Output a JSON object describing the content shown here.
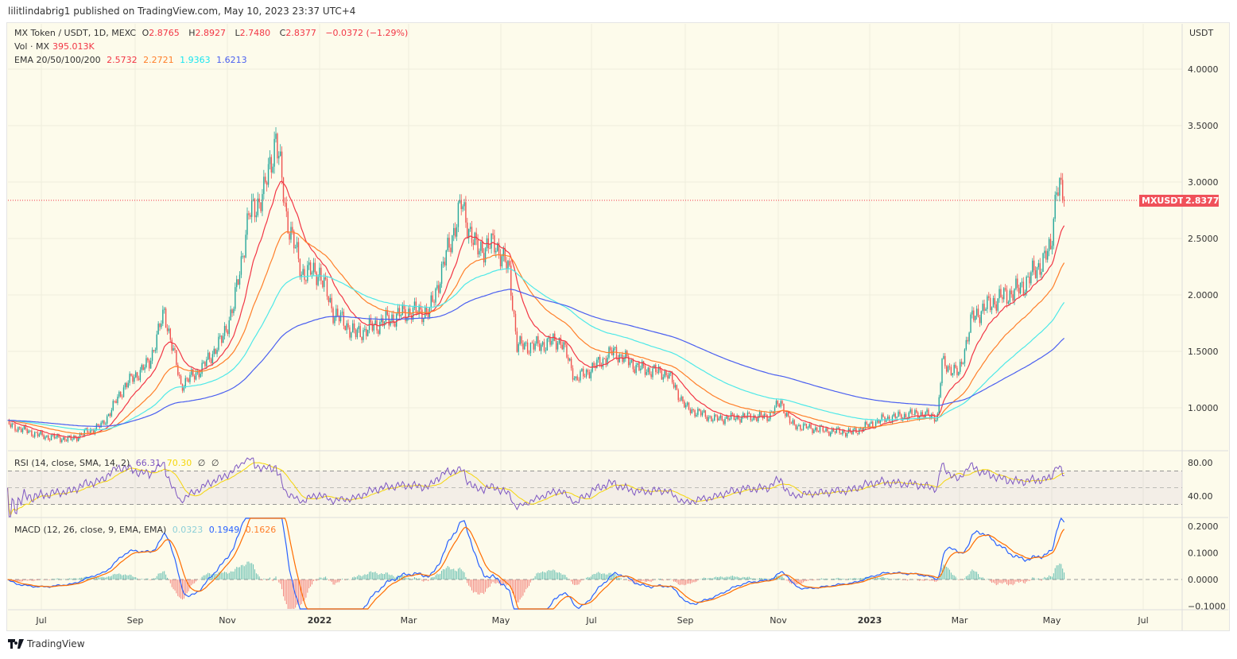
{
  "publish_line": "lilitlindabrig1 published on TradingView.com, May 10, 2023 23:37 UTC+4",
  "legend": {
    "symbol": "MX Token / USDT, 1D, MEXC",
    "o_label": "O",
    "o": "2.8765",
    "h_label": "H",
    "h": "2.8927",
    "l_label": "L",
    "l": "2.7480",
    "c_label": "C",
    "c": "2.8377",
    "change": "−0.0372 (−1.29%)",
    "vol_label": "Vol · MX",
    "vol": "395.013K",
    "ema_label": "EMA 20/50/100/200",
    "ema20": "2.5732",
    "ema50": "2.2721",
    "ema100": "1.9363",
    "ema200": "1.6213",
    "rsi_label": "RSI (14, close, SMA, 14, 2)",
    "rsi": "66.31",
    "rsi_ma": "70.30",
    "rsi_x1": "∅",
    "rsi_x2": "∅",
    "macd_label": "MACD (12, 26, close, 9, EMA, EMA)",
    "macd_hist": "0.0323",
    "macd": "0.1949",
    "macd_signal": "0.1626"
  },
  "price_axis": {
    "unit": "USDT",
    "ticks": [
      "4.0000",
      "3.5000",
      "3.0000",
      "2.5000",
      "2.0000",
      "1.5000",
      "1.0000"
    ]
  },
  "last_price_tag": {
    "symbol": "MXUSDT",
    "price": "2.8377"
  },
  "rsi_axis": {
    "ticks": [
      "80.00",
      "40.00"
    ]
  },
  "macd_axis": {
    "ticks": [
      "0.2000",
      "0.1000",
      "0.0000",
      "−0.1000"
    ]
  },
  "time_axis": {
    "ticks": [
      "Jul",
      "Sep",
      "Nov",
      "2022",
      "Mar",
      "May",
      "Jul",
      "Sep",
      "Nov",
      "2023",
      "Mar",
      "May",
      "Jul"
    ]
  },
  "brand": "TradingView",
  "colors": {
    "up": "#26a69a",
    "down": "#ef5350",
    "ema20": "#f23645",
    "ema50": "#ff7f2a",
    "ema100": "#4ee8e8",
    "ema200": "#4a5ff0",
    "rsi": "#7e57c2",
    "rsi_ma": "#f5d60a",
    "macd": "#2962ff",
    "signal": "#ff6d00"
  },
  "chart_data": {
    "type": "candlestick",
    "ylim": [
      0.62,
      4.2
    ],
    "yscale": "linear",
    "grid": true,
    "approximate_close_points": [
      [
        "2021-06-08",
        0.85
      ],
      [
        "2021-07-01",
        0.75
      ],
      [
        "2021-07-20",
        0.72
      ],
      [
        "2021-08-10",
        0.85
      ],
      [
        "2021-08-25",
        1.2
      ],
      [
        "2021-09-10",
        1.4
      ],
      [
        "2021-09-20",
        1.85
      ],
      [
        "2021-10-01",
        1.2
      ],
      [
        "2021-10-15",
        1.35
      ],
      [
        "2021-10-28",
        1.6
      ],
      [
        "2021-11-05",
        1.9
      ],
      [
        "2021-11-15",
        2.7
      ],
      [
        "2021-11-25",
        2.9
      ],
      [
        "2021-12-03",
        3.4
      ],
      [
        "2021-12-10",
        2.7
      ],
      [
        "2021-12-20",
        2.2
      ],
      [
        "2022-01-01",
        2.2
      ],
      [
        "2022-01-10",
        1.85
      ],
      [
        "2022-01-25",
        1.65
      ],
      [
        "2022-02-10",
        1.75
      ],
      [
        "2022-02-28",
        1.85
      ],
      [
        "2022-03-15",
        1.85
      ],
      [
        "2022-03-25",
        2.3
      ],
      [
        "2022-04-05",
        2.8
      ],
      [
        "2022-04-15",
        2.4
      ],
      [
        "2022-04-28",
        2.45
      ],
      [
        "2022-05-07",
        2.2
      ],
      [
        "2022-05-12",
        1.55
      ],
      [
        "2022-05-25",
        1.55
      ],
      [
        "2022-06-10",
        1.6
      ],
      [
        "2022-06-20",
        1.25
      ],
      [
        "2022-07-01",
        1.35
      ],
      [
        "2022-07-15",
        1.5
      ],
      [
        "2022-08-01",
        1.35
      ],
      [
        "2022-08-20",
        1.3
      ],
      [
        "2022-09-01",
        1.0
      ],
      [
        "2022-09-20",
        0.9
      ],
      [
        "2022-10-10",
        0.92
      ],
      [
        "2022-10-25",
        0.92
      ],
      [
        "2022-11-03",
        1.05
      ],
      [
        "2022-11-10",
        0.85
      ],
      [
        "2022-12-01",
        0.8
      ],
      [
        "2022-12-20",
        0.78
      ],
      [
        "2023-01-10",
        0.9
      ],
      [
        "2023-02-01",
        0.95
      ],
      [
        "2023-02-15",
        0.92
      ],
      [
        "2023-02-18",
        1.4
      ],
      [
        "2023-03-01",
        1.3
      ],
      [
        "2023-03-10",
        1.8
      ],
      [
        "2023-03-25",
        1.95
      ],
      [
        "2023-04-10",
        2.05
      ],
      [
        "2023-04-20",
        2.2
      ],
      [
        "2023-05-01",
        2.4
      ],
      [
        "2023-05-05",
        3.0
      ],
      [
        "2023-05-10",
        2.8377
      ]
    ]
  }
}
